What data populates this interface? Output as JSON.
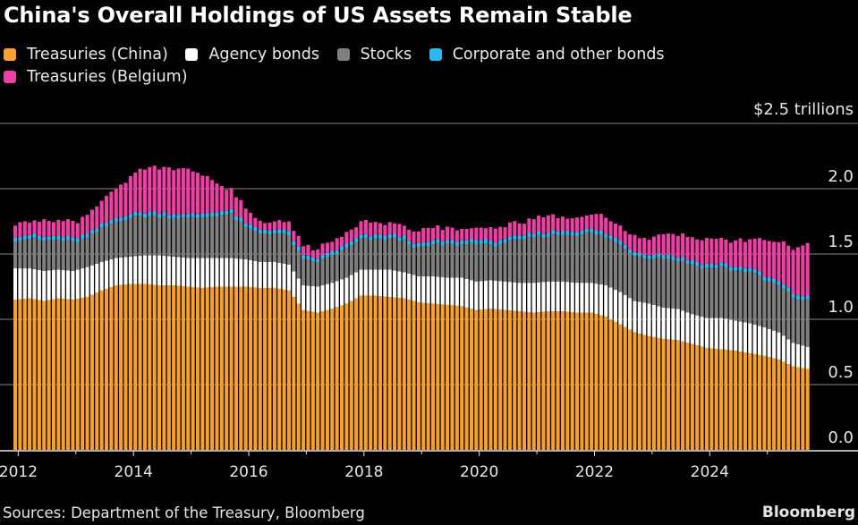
{
  "header": {
    "title": "China's Overall Holdings of US Assets Remain Stable"
  },
  "footer": {
    "source": "Sources: Department of the Treasury, Bloomberg",
    "brand": "Bloomberg"
  },
  "chart_data": {
    "type": "bar",
    "stacked": true,
    "title": "China's Overall Holdings of US Assets Remain Stable",
    "xlabel": "",
    "ylabel": "",
    "y_unit_label": "$2.5 trillions",
    "ylim": [
      0,
      2.5
    ],
    "yticks": [
      0.0,
      0.5,
      1.0,
      1.5,
      2.0,
      2.5
    ],
    "ytick_labels": [
      "0.0",
      "0.5",
      "1.0",
      "1.5",
      "2.0",
      "$2.5 trillions"
    ],
    "xtick_labels": [
      "2012",
      "2014",
      "2016",
      "2018",
      "2020",
      "2022",
      "2024"
    ],
    "xtick_years": [
      2012,
      2013,
      2014,
      2015,
      2016,
      2017,
      2018,
      2019,
      2020,
      2021,
      2022,
      2023,
      2024,
      2025
    ],
    "grid": true,
    "legend_position": "top-left",
    "frequency": "monthly (quarterly anchor estimates, interpolated)",
    "x_start": "2011-12",
    "x_end": "2025-09",
    "anchor_dates": [
      "2011-12",
      "2012-03",
      "2012-06",
      "2012-09",
      "2012-12",
      "2013-03",
      "2013-06",
      "2013-09",
      "2013-12",
      "2014-03",
      "2014-06",
      "2014-09",
      "2014-12",
      "2015-03",
      "2015-06",
      "2015-09",
      "2015-12",
      "2016-03",
      "2016-06",
      "2016-09",
      "2016-12",
      "2017-03",
      "2017-06",
      "2017-09",
      "2017-12",
      "2018-03",
      "2018-06",
      "2018-09",
      "2018-12",
      "2019-03",
      "2019-06",
      "2019-09",
      "2019-12",
      "2020-03",
      "2020-06",
      "2020-09",
      "2020-12",
      "2021-03",
      "2021-06",
      "2021-09",
      "2021-12",
      "2022-03",
      "2022-06",
      "2022-09",
      "2022-12",
      "2023-03",
      "2023-06",
      "2023-09",
      "2023-12",
      "2024-03",
      "2024-06",
      "2024-09",
      "2024-12",
      "2025-03",
      "2025-06",
      "2025-09"
    ],
    "series": [
      {
        "name": "Treasuries (China)",
        "color": "#f7a030",
        "values": [
          1.15,
          1.16,
          1.14,
          1.16,
          1.15,
          1.17,
          1.22,
          1.26,
          1.27,
          1.27,
          1.26,
          1.26,
          1.25,
          1.24,
          1.25,
          1.25,
          1.25,
          1.24,
          1.24,
          1.22,
          1.07,
          1.05,
          1.08,
          1.12,
          1.18,
          1.18,
          1.17,
          1.16,
          1.13,
          1.12,
          1.11,
          1.1,
          1.07,
          1.08,
          1.07,
          1.06,
          1.05,
          1.06,
          1.06,
          1.05,
          1.05,
          1.02,
          0.96,
          0.9,
          0.87,
          0.85,
          0.84,
          0.81,
          0.78,
          0.77,
          0.76,
          0.74,
          0.72,
          0.69,
          0.64,
          0.62
        ]
      },
      {
        "name": "Agency bonds",
        "color": "#ffffff",
        "values": [
          0.24,
          0.23,
          0.23,
          0.22,
          0.22,
          0.23,
          0.22,
          0.21,
          0.21,
          0.22,
          0.23,
          0.22,
          0.22,
          0.23,
          0.22,
          0.22,
          0.21,
          0.2,
          0.2,
          0.2,
          0.19,
          0.2,
          0.2,
          0.2,
          0.2,
          0.2,
          0.21,
          0.2,
          0.2,
          0.21,
          0.21,
          0.22,
          0.22,
          0.22,
          0.22,
          0.22,
          0.23,
          0.23,
          0.23,
          0.23,
          0.23,
          0.24,
          0.25,
          0.24,
          0.25,
          0.24,
          0.24,
          0.23,
          0.23,
          0.24,
          0.23,
          0.23,
          0.22,
          0.21,
          0.18,
          0.17
        ]
      },
      {
        "name": "Stocks",
        "color": "#7f7f7f",
        "values": [
          0.22,
          0.23,
          0.23,
          0.23,
          0.22,
          0.22,
          0.25,
          0.28,
          0.3,
          0.3,
          0.3,
          0.3,
          0.3,
          0.31,
          0.33,
          0.33,
          0.24,
          0.22,
          0.22,
          0.22,
          0.19,
          0.19,
          0.21,
          0.22,
          0.23,
          0.23,
          0.24,
          0.24,
          0.21,
          0.24,
          0.25,
          0.25,
          0.3,
          0.26,
          0.3,
          0.32,
          0.35,
          0.35,
          0.36,
          0.37,
          0.38,
          0.37,
          0.36,
          0.35,
          0.35,
          0.38,
          0.37,
          0.38,
          0.38,
          0.39,
          0.38,
          0.4,
          0.36,
          0.36,
          0.35,
          0.35
        ]
      },
      {
        "name": "Corporate and other bonds",
        "color": "#2eb8f0",
        "values": [
          0.03,
          0.03,
          0.03,
          0.03,
          0.03,
          0.03,
          0.03,
          0.03,
          0.03,
          0.03,
          0.03,
          0.03,
          0.03,
          0.03,
          0.03,
          0.03,
          0.03,
          0.03,
          0.03,
          0.03,
          0.03,
          0.03,
          0.03,
          0.03,
          0.03,
          0.03,
          0.03,
          0.03,
          0.03,
          0.03,
          0.03,
          0.03,
          0.03,
          0.03,
          0.03,
          0.03,
          0.03,
          0.03,
          0.03,
          0.03,
          0.03,
          0.03,
          0.03,
          0.03,
          0.03,
          0.03,
          0.03,
          0.03,
          0.03,
          0.03,
          0.03,
          0.03,
          0.03,
          0.03,
          0.03,
          0.03
        ]
      },
      {
        "name": "Treasuries (Belgium)",
        "color": "#ee3fa4",
        "values": [
          0.1,
          0.11,
          0.12,
          0.12,
          0.12,
          0.15,
          0.18,
          0.22,
          0.28,
          0.34,
          0.35,
          0.35,
          0.34,
          0.3,
          0.22,
          0.15,
          0.12,
          0.06,
          0.07,
          0.07,
          0.07,
          0.07,
          0.08,
          0.08,
          0.1,
          0.1,
          0.09,
          0.09,
          0.1,
          0.1,
          0.09,
          0.1,
          0.09,
          0.1,
          0.1,
          0.1,
          0.11,
          0.12,
          0.1,
          0.11,
          0.11,
          0.12,
          0.12,
          0.12,
          0.13,
          0.15,
          0.17,
          0.18,
          0.2,
          0.18,
          0.2,
          0.21,
          0.28,
          0.3,
          0.35,
          0.39
        ]
      }
    ]
  }
}
